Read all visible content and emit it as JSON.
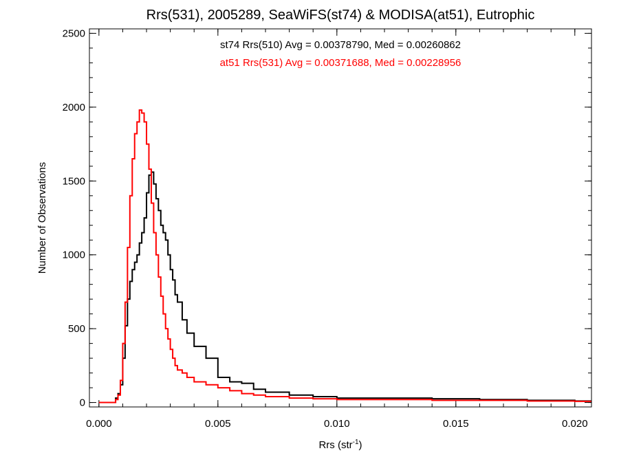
{
  "chart_data": {
    "type": "line",
    "title": "Rrs(531), 2005289, SeaWiFS(st74) & MODISA(at51), Eutrophic",
    "xlabel": {
      "main": "Rrs (str",
      "sup": "-1",
      "close": ")"
    },
    "ylabel": "Number of Observations",
    "xlim": [
      -0.0004,
      0.0207
    ],
    "ylim": [
      -30,
      2530
    ],
    "x_ticks": [
      0.0,
      0.005,
      0.01,
      0.015,
      0.02
    ],
    "x_tick_labels": [
      "0.000",
      "0.005",
      "0.010",
      "0.015",
      "0.020"
    ],
    "y_ticks": [
      0,
      500,
      1000,
      1500,
      2000,
      2500
    ],
    "y_tick_labels": [
      "0",
      "500",
      "1000",
      "1500",
      "2000",
      "2500"
    ],
    "grid": false,
    "annotations": [
      {
        "text": "st74 Rrs(510) Avg = 0.00378790, Med = 0.00260862",
        "color": "#000000"
      },
      {
        "text": "at51 Rrs(531) Avg = 0.00371688, Med = 0.00228956",
        "color": "#ff0000"
      }
    ],
    "series": [
      {
        "color": "#000000",
        "style": "step",
        "x": [
          0.0,
          0.0005,
          0.0007,
          0.0008,
          0.0009,
          0.001,
          0.0011,
          0.0012,
          0.0013,
          0.0014,
          0.0015,
          0.0016,
          0.0017,
          0.0018,
          0.0019,
          0.002,
          0.0021,
          0.0022,
          0.0023,
          0.0024,
          0.0025,
          0.0026,
          0.0027,
          0.0028,
          0.0029,
          0.003,
          0.0031,
          0.0032,
          0.0033,
          0.0035,
          0.0037,
          0.004,
          0.0045,
          0.005,
          0.0055,
          0.006,
          0.0065,
          0.007,
          0.008,
          0.009,
          0.01,
          0.012,
          0.014,
          0.016,
          0.018,
          0.02,
          0.0207
        ],
        "y": [
          0,
          0,
          30,
          60,
          120,
          300,
          520,
          700,
          820,
          900,
          950,
          1000,
          1080,
          1150,
          1250,
          1420,
          1540,
          1560,
          1480,
          1380,
          1300,
          1200,
          1150,
          1100,
          1000,
          900,
          830,
          730,
          680,
          560,
          470,
          380,
          300,
          170,
          140,
          130,
          90,
          70,
          50,
          40,
          30,
          30,
          25,
          20,
          15,
          10,
          10
        ]
      },
      {
        "color": "#ff0000",
        "style": "step",
        "x": [
          0.0,
          0.0005,
          0.0007,
          0.0008,
          0.0009,
          0.001,
          0.0011,
          0.0012,
          0.0013,
          0.0014,
          0.0015,
          0.0016,
          0.0017,
          0.0018,
          0.0019,
          0.002,
          0.0021,
          0.0022,
          0.0023,
          0.0024,
          0.0025,
          0.0026,
          0.0027,
          0.0028,
          0.0029,
          0.003,
          0.0031,
          0.0032,
          0.0033,
          0.0035,
          0.0037,
          0.004,
          0.0045,
          0.005,
          0.0055,
          0.006,
          0.0065,
          0.007,
          0.008,
          0.009,
          0.01,
          0.012,
          0.014,
          0.016,
          0.018,
          0.02,
          0.0207
        ],
        "y": [
          0,
          0,
          20,
          50,
          150,
          400,
          680,
          1050,
          1400,
          1650,
          1820,
          1900,
          1980,
          1960,
          1900,
          1750,
          1580,
          1350,
          1150,
          1000,
          850,
          720,
          600,
          500,
          430,
          360,
          300,
          250,
          220,
          200,
          170,
          140,
          120,
          100,
          80,
          60,
          50,
          40,
          30,
          25,
          20,
          20,
          15,
          15,
          10,
          8,
          8
        ]
      }
    ]
  }
}
